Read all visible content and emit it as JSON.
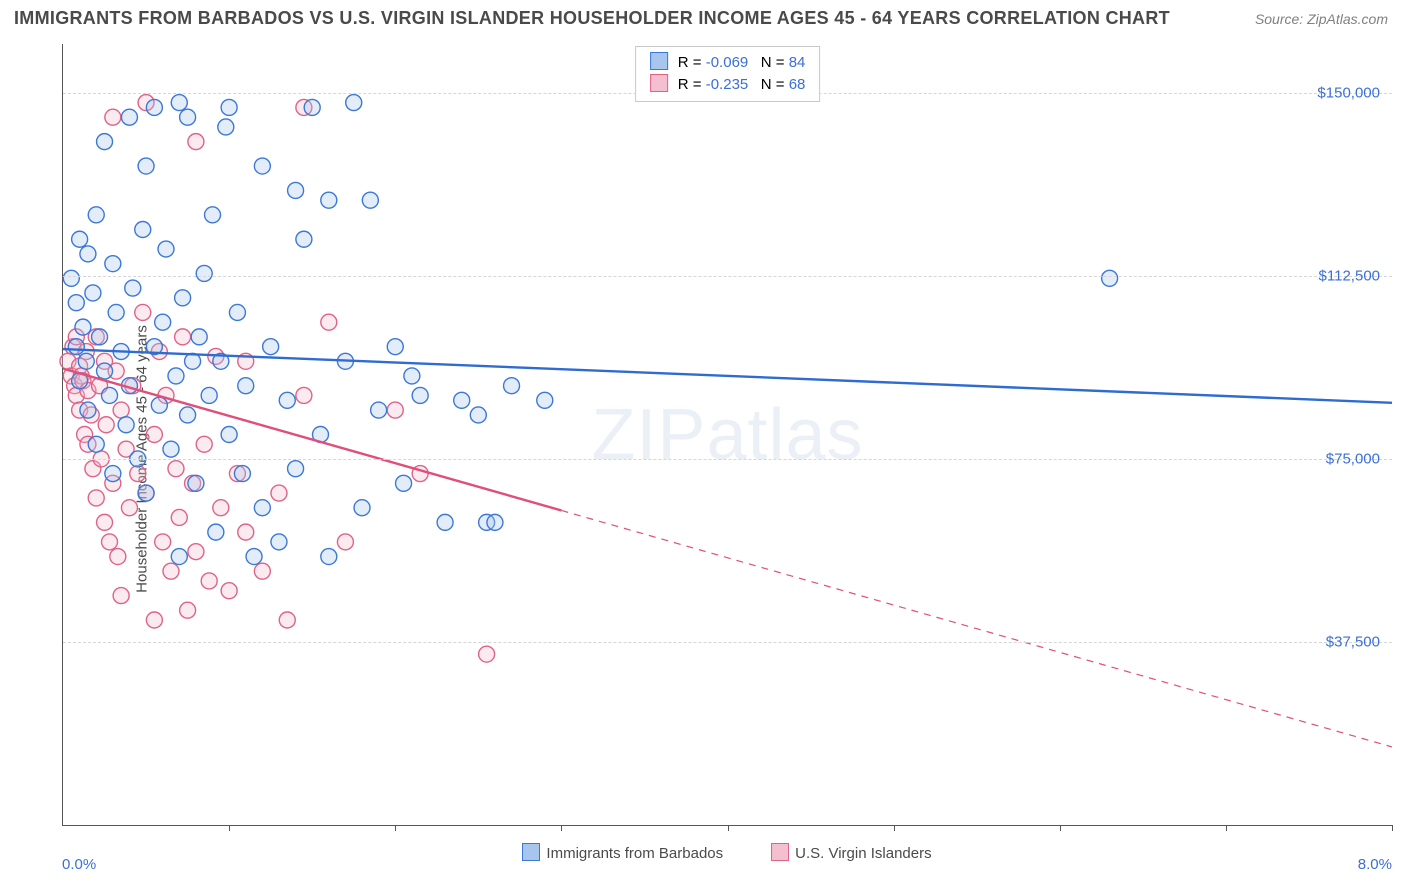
{
  "title": "IMMIGRANTS FROM BARBADOS VS U.S. VIRGIN ISLANDER HOUSEHOLDER INCOME AGES 45 - 64 YEARS CORRELATION CHART",
  "source": "Source: ZipAtlas.com",
  "ylabel": "Householder Income Ages 45 - 64 years",
  "watermark_a": "ZIP",
  "watermark_b": "atlas",
  "chart": {
    "type": "scatter",
    "xlim": [
      0,
      8
    ],
    "ylim": [
      0,
      160000
    ],
    "x_tick_positions": [
      0,
      1,
      2,
      3,
      4,
      5,
      6,
      7,
      8
    ],
    "x_tick_labels": {
      "first": "0.0%",
      "last": "8.0%"
    },
    "y_gridlines": [
      37500,
      75000,
      112500,
      150000
    ],
    "y_tick_labels": [
      "$37,500",
      "$75,000",
      "$112,500",
      "$150,000"
    ],
    "grid_color": "#d6d6d6",
    "axis_color": "#555555",
    "tick_label_color": "#3b6fd8",
    "background_color": "#ffffff",
    "marker_radius": 8,
    "marker_stroke_width": 1.4,
    "marker_fill_opacity": 0.32,
    "trend_line_width": 2.4,
    "series": [
      {
        "id": "barbados",
        "label": "Immigrants from Barbados",
        "color_stroke": "#3b78d8",
        "color_fill": "#a8c5ed",
        "trend_color": "#2f6bd1",
        "R": "-0.069",
        "N": "84",
        "trend": {
          "x1": 0.0,
          "y1": 97500,
          "x2": 8.0,
          "y2": 86500,
          "dash_from_x": null
        },
        "points": [
          [
            0.05,
            112000
          ],
          [
            0.08,
            107000
          ],
          [
            0.08,
            98000
          ],
          [
            0.1,
            120000
          ],
          [
            0.1,
            91000
          ],
          [
            0.12,
            102000
          ],
          [
            0.14,
            95000
          ],
          [
            0.15,
            117000
          ],
          [
            0.15,
            85000
          ],
          [
            0.18,
            109000
          ],
          [
            0.2,
            125000
          ],
          [
            0.2,
            78000
          ],
          [
            0.22,
            100000
          ],
          [
            0.25,
            93000
          ],
          [
            0.25,
            140000
          ],
          [
            0.28,
            88000
          ],
          [
            0.3,
            115000
          ],
          [
            0.3,
            72000
          ],
          [
            0.32,
            105000
          ],
          [
            0.35,
            97000
          ],
          [
            0.38,
            82000
          ],
          [
            0.4,
            145000
          ],
          [
            0.4,
            90000
          ],
          [
            0.42,
            110000
          ],
          [
            0.45,
            75000
          ],
          [
            0.48,
            122000
          ],
          [
            0.5,
            68000
          ],
          [
            0.5,
            135000
          ],
          [
            0.55,
            98000
          ],
          [
            0.55,
            147000
          ],
          [
            0.58,
            86000
          ],
          [
            0.6,
            103000
          ],
          [
            0.62,
            118000
          ],
          [
            0.65,
            77000
          ],
          [
            0.68,
            92000
          ],
          [
            0.7,
            148000
          ],
          [
            0.7,
            55000
          ],
          [
            0.72,
            108000
          ],
          [
            0.75,
            84000
          ],
          [
            0.75,
            145000
          ],
          [
            0.78,
            95000
          ],
          [
            0.8,
            70000
          ],
          [
            0.82,
            100000
          ],
          [
            0.85,
            113000
          ],
          [
            0.88,
            88000
          ],
          [
            0.9,
            125000
          ],
          [
            0.92,
            60000
          ],
          [
            0.95,
            95000
          ],
          [
            0.98,
            143000
          ],
          [
            1.0,
            147000
          ],
          [
            1.0,
            80000
          ],
          [
            1.05,
            105000
          ],
          [
            1.08,
            72000
          ],
          [
            1.1,
            90000
          ],
          [
            1.15,
            55000
          ],
          [
            1.2,
            135000
          ],
          [
            1.2,
            65000
          ],
          [
            1.25,
            98000
          ],
          [
            1.3,
            58000
          ],
          [
            1.35,
            87000
          ],
          [
            1.4,
            130000
          ],
          [
            1.4,
            73000
          ],
          [
            1.45,
            120000
          ],
          [
            1.5,
            147000
          ],
          [
            1.55,
            80000
          ],
          [
            1.6,
            128000
          ],
          [
            1.6,
            55000
          ],
          [
            1.7,
            95000
          ],
          [
            1.75,
            148000
          ],
          [
            1.8,
            65000
          ],
          [
            1.85,
            128000
          ],
          [
            1.9,
            85000
          ],
          [
            2.0,
            98000
          ],
          [
            2.05,
            70000
          ],
          [
            2.1,
            92000
          ],
          [
            2.15,
            88000
          ],
          [
            2.3,
            62000
          ],
          [
            2.4,
            87000
          ],
          [
            2.5,
            84000
          ],
          [
            2.55,
            62000
          ],
          [
            2.6,
            62000
          ],
          [
            2.7,
            90000
          ],
          [
            2.9,
            87000
          ],
          [
            6.3,
            112000
          ]
        ]
      },
      {
        "id": "usvi",
        "label": "U.S. Virgin Islanders",
        "color_stroke": "#e06387",
        "color_fill": "#f4bfce",
        "trend_color": "#de5078",
        "R": "-0.235",
        "N": "68",
        "trend": {
          "x1": 0.0,
          "y1": 93500,
          "x2": 8.0,
          "y2": 16000,
          "dash_from_x": 3.0
        },
        "points": [
          [
            0.03,
            95000
          ],
          [
            0.05,
            92000
          ],
          [
            0.06,
            98000
          ],
          [
            0.07,
            90000
          ],
          [
            0.08,
            88000
          ],
          [
            0.08,
            100000
          ],
          [
            0.1,
            94000
          ],
          [
            0.1,
            85000
          ],
          [
            0.11,
            92000
          ],
          [
            0.12,
            91000
          ],
          [
            0.13,
            80000
          ],
          [
            0.14,
            97000
          ],
          [
            0.15,
            78000
          ],
          [
            0.15,
            89000
          ],
          [
            0.17,
            84000
          ],
          [
            0.18,
            73000
          ],
          [
            0.2,
            100000
          ],
          [
            0.2,
            67000
          ],
          [
            0.22,
            90000
          ],
          [
            0.23,
            75000
          ],
          [
            0.25,
            62000
          ],
          [
            0.25,
            95000
          ],
          [
            0.26,
            82000
          ],
          [
            0.28,
            58000
          ],
          [
            0.3,
            70000
          ],
          [
            0.3,
            145000
          ],
          [
            0.32,
            93000
          ],
          [
            0.33,
            55000
          ],
          [
            0.35,
            85000
          ],
          [
            0.35,
            47000
          ],
          [
            0.38,
            77000
          ],
          [
            0.4,
            65000
          ],
          [
            0.42,
            90000
          ],
          [
            0.45,
            72000
          ],
          [
            0.48,
            105000
          ],
          [
            0.5,
            68000
          ],
          [
            0.5,
            148000
          ],
          [
            0.55,
            80000
          ],
          [
            0.55,
            42000
          ],
          [
            0.58,
            97000
          ],
          [
            0.6,
            58000
          ],
          [
            0.62,
            88000
          ],
          [
            0.65,
            52000
          ],
          [
            0.68,
            73000
          ],
          [
            0.7,
            63000
          ],
          [
            0.72,
            100000
          ],
          [
            0.75,
            44000
          ],
          [
            0.78,
            70000
          ],
          [
            0.8,
            56000
          ],
          [
            0.8,
            140000
          ],
          [
            0.85,
            78000
          ],
          [
            0.88,
            50000
          ],
          [
            0.92,
            96000
          ],
          [
            0.95,
            65000
          ],
          [
            1.0,
            48000
          ],
          [
            1.05,
            72000
          ],
          [
            1.1,
            60000
          ],
          [
            1.1,
            95000
          ],
          [
            1.2,
            52000
          ],
          [
            1.3,
            68000
          ],
          [
            1.35,
            42000
          ],
          [
            1.45,
            147000
          ],
          [
            1.45,
            88000
          ],
          [
            1.6,
            103000
          ],
          [
            1.7,
            58000
          ],
          [
            2.0,
            85000
          ],
          [
            2.15,
            72000
          ],
          [
            2.55,
            35000
          ]
        ]
      }
    ]
  }
}
